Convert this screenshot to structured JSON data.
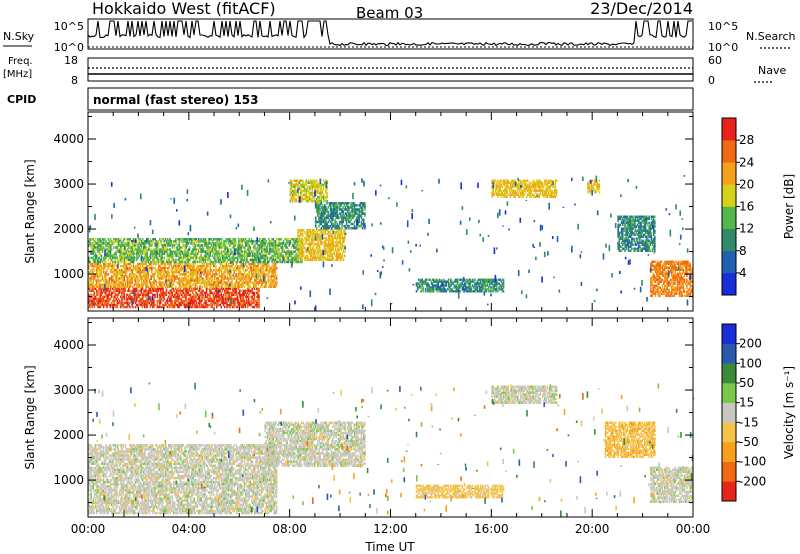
{
  "header": {
    "title": "Hokkaido West (fitACF)",
    "beam": "Beam 03",
    "date": "23/Dec/2014"
  },
  "aux": {
    "nsky_label": "N.Sky",
    "nsky_ticks": [
      "10^5",
      "10^0"
    ],
    "nsearch_label": "N.Search",
    "nsearch_ticks": [
      "10^5",
      "10^0"
    ],
    "freq_label": "Freq.",
    "freq_unit": "[MHz]",
    "freq_ticks": [
      "18",
      "8"
    ],
    "nave_label": "Nave",
    "nave_ticks": [
      "60",
      "0"
    ],
    "cpid_label": "CPID",
    "cpid_text": "normal (fast stereo) 153"
  },
  "xaxis": {
    "label": "Time UT",
    "ticks": [
      "00:00",
      "04:00",
      "08:00",
      "12:00",
      "16:00",
      "20:00",
      "00:00"
    ]
  },
  "chart_data": [
    {
      "type": "heatmap",
      "ylabel": "Slant Range [km]",
      "yticks": [
        1000,
        2000,
        3000,
        4000
      ],
      "ylim": [
        180,
        4600
      ],
      "xlim_hours": [
        0,
        24
      ],
      "colorbar_label": "Power [dB]",
      "colorbar_ticks": [
        "4",
        "8",
        "12",
        "16",
        "20",
        "24",
        "28"
      ],
      "colorbar_colors": [
        "#1a2cd8",
        "#2060b0",
        "#2f8a6a",
        "#52b84a",
        "#d6d21c",
        "#f5a21a",
        "#f06a14",
        "#e8231a"
      ],
      "regions": [
        {
          "t0": 0.0,
          "t1": 6.8,
          "r0": 250,
          "r1": 700,
          "value": 28
        },
        {
          "t0": 0.0,
          "t1": 7.5,
          "r0": 700,
          "r1": 1250,
          "value": 22
        },
        {
          "t0": 0.0,
          "t1": 8.5,
          "r0": 1250,
          "r1": 1800,
          "value": 14
        },
        {
          "t0": 8.3,
          "t1": 10.2,
          "r0": 1300,
          "r1": 2000,
          "value": 20
        },
        {
          "t0": 9.0,
          "t1": 11.0,
          "r0": 2000,
          "r1": 2600,
          "value": 10
        },
        {
          "t0": 8.0,
          "t1": 9.5,
          "r0": 2600,
          "r1": 3100,
          "value": 18
        },
        {
          "t0": 13.0,
          "t1": 16.5,
          "r0": 600,
          "r1": 900,
          "value": 10
        },
        {
          "t0": 16.0,
          "t1": 18.6,
          "r0": 2700,
          "r1": 3100,
          "value": 20
        },
        {
          "t0": 19.8,
          "t1": 20.3,
          "r0": 2800,
          "r1": 3100,
          "value": 20
        },
        {
          "t0": 21.0,
          "t1": 22.5,
          "r0": 1500,
          "r1": 2300,
          "value": 10
        },
        {
          "t0": 22.3,
          "t1": 24.0,
          "r0": 500,
          "r1": 1300,
          "value": 24
        }
      ]
    },
    {
      "type": "heatmap",
      "ylabel": "Slant Range [km]",
      "yticks": [
        1000,
        2000,
        3000,
        4000
      ],
      "ylim": [
        180,
        4600
      ],
      "xlim_hours": [
        0,
        24
      ],
      "colorbar_label": "Velocity [m s⁻¹]",
      "colorbar_ticks": [
        "-200",
        "-100",
        "-50",
        "-15",
        "15",
        "50",
        "100",
        "200"
      ],
      "colorbar_colors": [
        "#e8231a",
        "#f06a14",
        "#f5a21a",
        "#f5c24a",
        "#c8c8c0",
        "#7ac84a",
        "#3a8a3a",
        "#2a5ab0",
        "#1a2cd8"
      ],
      "regions": [
        {
          "t0": 0.0,
          "t1": 7.5,
          "r0": 250,
          "r1": 1800,
          "value": 0
        },
        {
          "t0": 7.0,
          "t1": 11.0,
          "r0": 1300,
          "r1": 2300,
          "value": 0
        },
        {
          "t0": 16.0,
          "t1": 18.6,
          "r0": 2700,
          "r1": 3100,
          "value": 0
        },
        {
          "t0": 13.0,
          "t1": 16.5,
          "r0": 600,
          "r1": 900,
          "value": -30
        },
        {
          "t0": 20.5,
          "t1": 22.5,
          "r0": 1500,
          "r1": 2300,
          "value": -40
        },
        {
          "t0": 22.3,
          "t1": 24.0,
          "r0": 500,
          "r1": 1300,
          "value": 0
        }
      ]
    }
  ]
}
